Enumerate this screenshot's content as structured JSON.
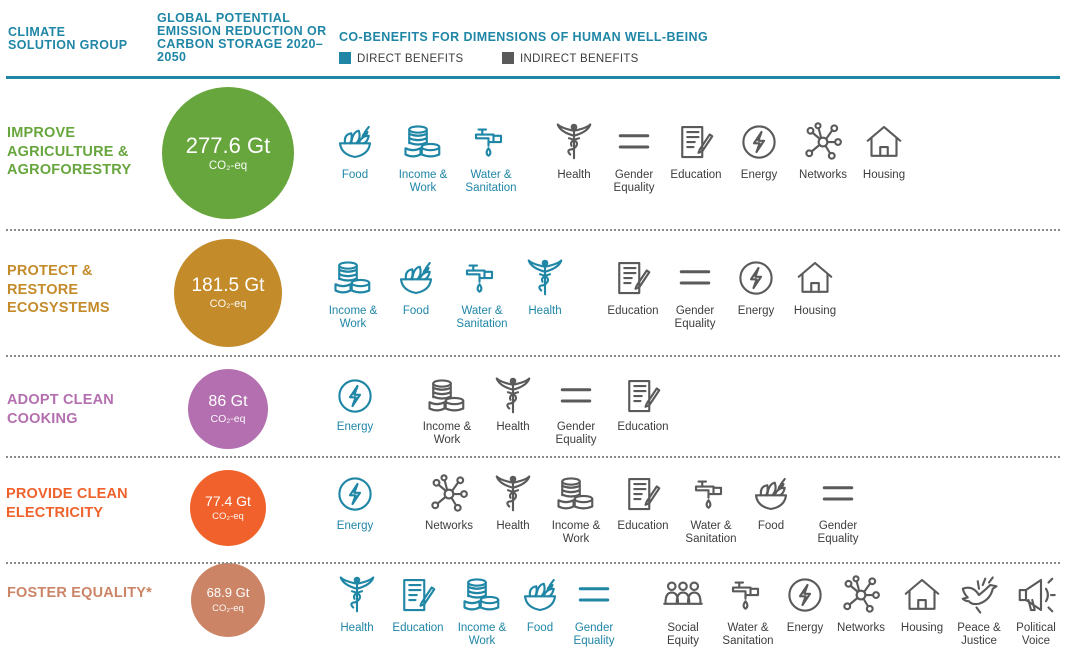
{
  "header": {
    "col1": "CLIMATE SOLUTION GROUP",
    "col2": "GLOBAL POTENTIAL EMISSION REDUCTION OR CARBON STORAGE 2020–2050",
    "col3": "CO-BENEFITS FOR DIMENSIONS OF HUMAN WELL-BEING",
    "legend_direct": "DIRECT BENEFITS",
    "legend_indirect": "INDIRECT BENEFITS",
    "color_direct": "#1f86a6",
    "color_indirect": "#5a5a5a"
  },
  "chart_data": {
    "type": "table",
    "unit": "CO₂-eq",
    "rows": [
      {
        "group": "IMPROVE AGRICULTURE & AGROFORESTRY",
        "value": 277.6,
        "value_text": "277.6 Gt",
        "color": "#67a53d",
        "direct": [
          "Food",
          "Income & Work",
          "Water & Sanitation"
        ],
        "indirect": [
          "Health",
          "Gender Equality",
          "Education",
          "Energy",
          "Networks",
          "Housing"
        ]
      },
      {
        "group": "PROTECT & RESTORE ECOSYSTEMS",
        "value": 181.5,
        "value_text": "181.5 Gt",
        "color": "#c48b2b",
        "direct": [
          "Income & Work",
          "Food",
          "Water & Sanitation",
          "Health"
        ],
        "indirect": [
          "Education",
          "Gender Equality",
          "Energy",
          "Housing"
        ]
      },
      {
        "group": "ADOPT CLEAN COOKING",
        "value": 86,
        "value_text": "86 Gt",
        "color": "#b36faf",
        "direct": [
          "Energy"
        ],
        "indirect": [
          "Income & Work",
          "Health",
          "Gender Equality",
          "Education"
        ]
      },
      {
        "group": "PROVIDE CLEAN ELECTRICITY",
        "value": 77.4,
        "value_text": "77.4 Gt",
        "color": "#f0612b",
        "direct": [
          "Energy"
        ],
        "indirect": [
          "Networks",
          "Health",
          "Income & Work",
          "Education",
          "Water & Sanitation",
          "Food",
          "Gender Equality"
        ]
      },
      {
        "group": "FOSTER EQUALITY*",
        "value": 68.9,
        "value_text": "68.9 Gt",
        "color": "#cc8466",
        "direct": [
          "Health",
          "Education",
          "Income & Work",
          "Food",
          "Gender Equality"
        ],
        "indirect": [
          "Social Equity",
          "Water & Sanitation",
          "Energy",
          "Networks",
          "Housing",
          "Peace & Justice",
          "Political Voice"
        ]
      }
    ]
  }
}
